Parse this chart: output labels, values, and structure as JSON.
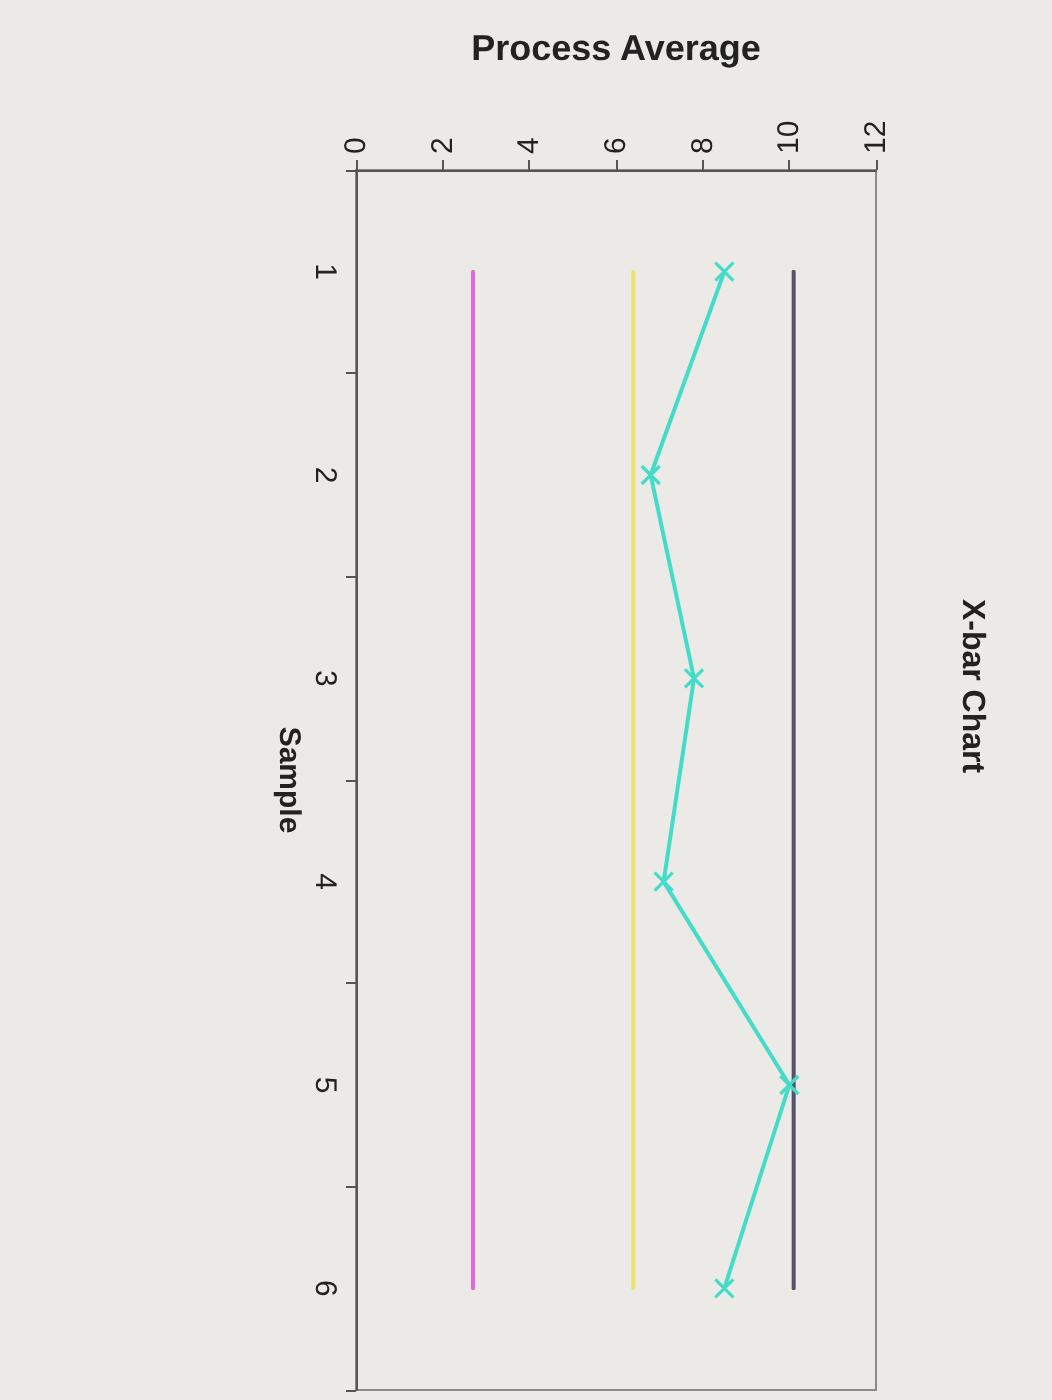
{
  "chart_data": {
    "type": "line",
    "title": "X-bar Chart",
    "xlabel": "Process Average",
    "ylabel": "Sample",
    "orientation": "horizontal",
    "categories": [
      "1",
      "2",
      "3",
      "4",
      "5",
      "6"
    ],
    "series": [
      {
        "color": "#55526a",
        "values": [
          10.1,
          10.1,
          10.1,
          10.1,
          10.1,
          10.1
        ]
      },
      {
        "color": "#ece36a",
        "values": [
          6.4,
          6.4,
          6.4,
          6.4,
          6.4,
          6.4
        ]
      },
      {
        "color": "#e06ad8",
        "values": [
          2.7,
          2.7,
          2.7,
          2.7,
          2.7,
          2.7
        ]
      },
      {
        "color": "#44dcc8",
        "values": [
          8.5,
          6.8,
          7.8,
          7.1,
          10.0,
          8.5
        ],
        "marker": "cross"
      }
    ],
    "marker": "none",
    "xlim": [
      0,
      12
    ],
    "xticks": [
      0,
      2,
      4,
      6,
      8,
      10,
      12
    ]
  }
}
